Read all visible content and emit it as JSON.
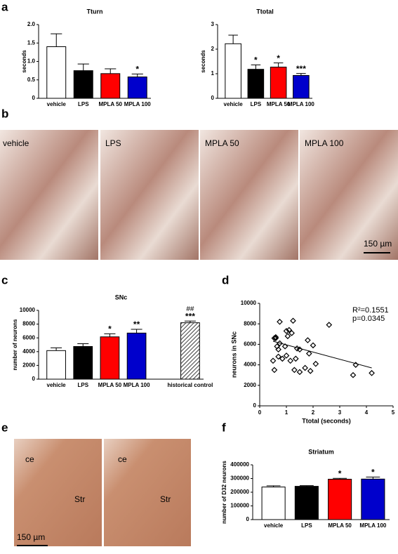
{
  "figure": {
    "panel_letters": [
      "a",
      "b",
      "c",
      "d",
      "e",
      "f"
    ],
    "b_labels": [
      "vehicle",
      "LPS",
      "MPLA 50",
      "MPLA 100"
    ],
    "b_scale": "150 µm",
    "e_labels": [
      "ce",
      "Str",
      "ce",
      "Str"
    ],
    "e_scale": "150 µm"
  },
  "chart_data": [
    {
      "type": "bar",
      "title": "Tturn",
      "y_label": "seconds",
      "categories": [
        "vehicle",
        "LPS",
        "MPLA 50",
        "MPLA 100"
      ],
      "values": [
        1.4,
        0.75,
        0.67,
        0.58
      ],
      "errors": [
        0.35,
        0.18,
        0.13,
        0.08
      ],
      "colors": [
        "#ffffff",
        "#000000",
        "#ff0000",
        "#0000cc"
      ],
      "hatched": [
        false,
        false,
        false,
        false
      ],
      "significance": [
        null,
        null,
        null,
        "*"
      ],
      "ylim": [
        0,
        2
      ],
      "yticks": [
        0,
        0.5,
        {
          "value": 1,
          "label": "1.0"
        },
        1.5,
        {
          "value": 2,
          "label": "2.0"
        }
      ]
    },
    {
      "type": "bar",
      "title": "Ttotal",
      "y_label": "seconds",
      "categories": [
        "vehicle",
        "LPS",
        "MPLA 50",
        "MPLA 100"
      ],
      "values": [
        2.22,
        1.18,
        1.27,
        0.93
      ],
      "errors": [
        0.35,
        0.18,
        0.17,
        0.08
      ],
      "colors": [
        "#ffffff",
        "#000000",
        "#ff0000",
        "#0000cc"
      ],
      "hatched": [
        false,
        false,
        false,
        false
      ],
      "significance": [
        null,
        "*",
        "*",
        "***"
      ],
      "ylim": [
        0,
        3
      ],
      "yticks": [
        0,
        1,
        2,
        3
      ]
    },
    {
      "type": "bar",
      "title": "SNc",
      "y_label": "number of neurons",
      "categories": [
        "vehicle",
        "LPS",
        "MPLA 50",
        "MPLA 100",
        null,
        "historical control"
      ],
      "values": [
        4150,
        4750,
        6150,
        6700,
        null,
        8200
      ],
      "errors": [
        400,
        400,
        450,
        550,
        null,
        250
      ],
      "colors": [
        "#ffffff",
        "#000000",
        "#ff0000",
        "#0000cc",
        null,
        "#ffffff"
      ],
      "hatched": [
        false,
        false,
        false,
        false,
        false,
        true
      ],
      "significance": [
        null,
        null,
        "*",
        "**",
        null,
        "***"
      ],
      "significance_2": [
        null,
        null,
        null,
        null,
        null,
        "##"
      ],
      "ylim": [
        0,
        10000
      ],
      "yticks": [
        0,
        2000,
        4000,
        6000,
        8000,
        10000
      ]
    },
    {
      "type": "scatter",
      "x_label": "Ttotal (seconds)",
      "y_label": "neurons in SNc",
      "annotations": [
        "R²=0.1551",
        "p=0.0345"
      ],
      "x": [
        0.5,
        0.55,
        0.6,
        0.6,
        0.55,
        0.7,
        0.7,
        0.75,
        0.75,
        0.85,
        0.95,
        1.0,
        1.05,
        1.1,
        1.15,
        1.2,
        1.25,
        1.3,
        1.35,
        1.4,
        1.5,
        1.5,
        1.7,
        1.8,
        1.85,
        1.9,
        2.0,
        2.1,
        2.6,
        3.5,
        3.6,
        4.2,
        0.65,
        1.0
      ],
      "values": [
        4400,
        6600,
        6700,
        6600,
        3500,
        4800,
        5500,
        8200,
        6100,
        4600,
        5800,
        7300,
        6800,
        7400,
        4400,
        7100,
        8300,
        3500,
        4600,
        5600,
        5500,
        3300,
        3700,
        6400,
        5100,
        3400,
        5900,
        4100,
        7900,
        3000,
        4000,
        3200,
        5800,
        4900
      ],
      "fit": {
        "x": [
          0.5,
          4.2
        ],
        "y": [
          6300,
          3700
        ]
      },
      "xlim": [
        0,
        5
      ],
      "xticks": [
        0,
        1,
        2,
        3,
        4,
        5
      ],
      "ylim": [
        0,
        10000
      ],
      "yticks": [
        0,
        2000,
        4000,
        6000,
        8000,
        10000
      ]
    },
    {
      "type": "bar",
      "title": "Striatum",
      "y_label": "number of D32 neurons",
      "categories": [
        "vehicle",
        "LPS",
        "MPLA 50",
        "MPLA 100"
      ],
      "values": [
        238000,
        243000,
        295000,
        296000
      ],
      "errors": [
        9000,
        5000,
        6000,
        15000
      ],
      "colors": [
        "#ffffff",
        "#000000",
        "#ff0000",
        "#0000cc"
      ],
      "hatched": [
        false,
        false,
        false,
        false
      ],
      "significance": [
        null,
        null,
        "*",
        "*"
      ],
      "ylim": [
        0,
        400000
      ],
      "yticks": [
        0,
        100000,
        200000,
        300000,
        400000
      ]
    }
  ]
}
